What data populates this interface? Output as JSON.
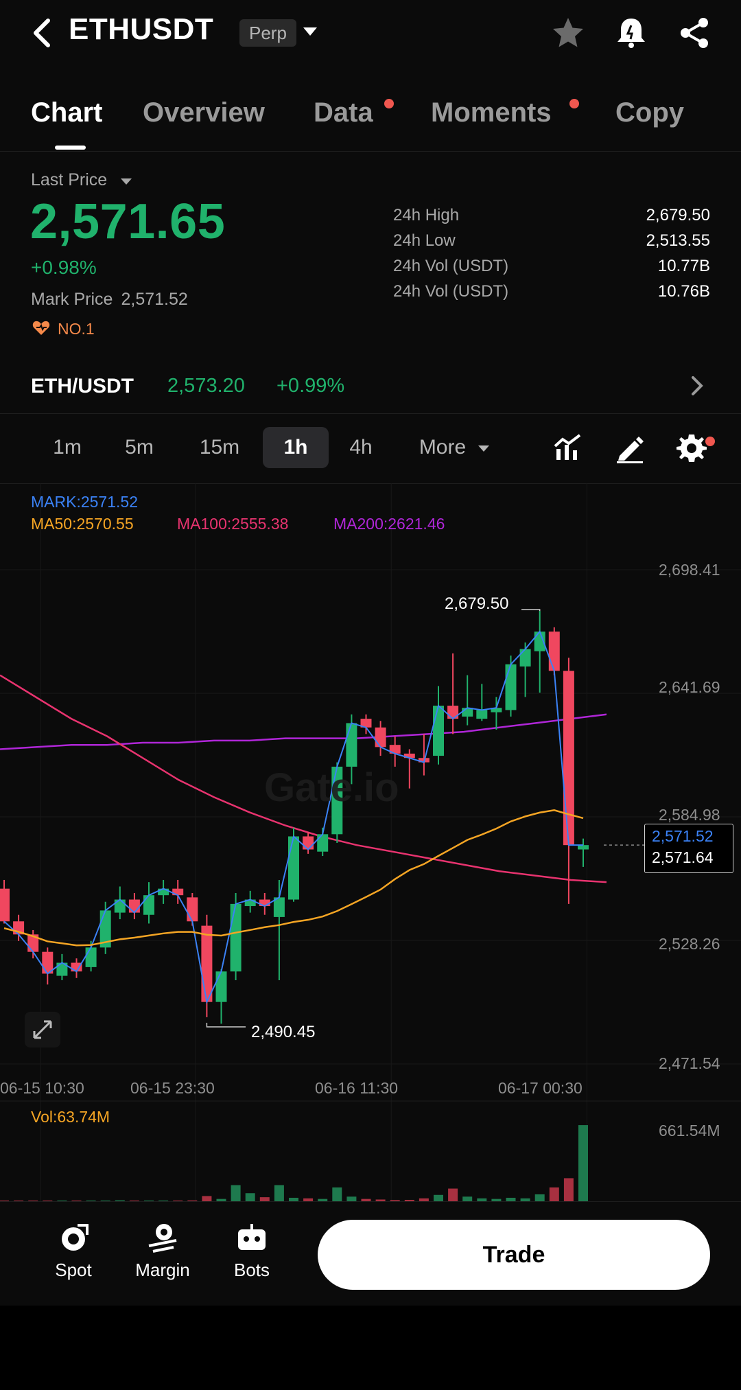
{
  "header": {
    "symbol": "ETHUSDT",
    "badge": "Perp",
    "icons": [
      "chevron-back-icon",
      "caret-down-icon",
      "star-icon",
      "bell-icon",
      "share-icon"
    ]
  },
  "tabs": [
    {
      "label": "Chart",
      "active": true,
      "dot": false
    },
    {
      "label": "Overview",
      "active": false,
      "dot": false
    },
    {
      "label": "Data",
      "active": false,
      "dot": true
    },
    {
      "label": "Moments",
      "active": false,
      "dot": true
    },
    {
      "label": "Copy",
      "active": false,
      "dot": false
    }
  ],
  "ticker": {
    "last_price_label": "Last Price",
    "last_price": "2,571.65",
    "change_pct": "+0.98%",
    "mark_price_label": "Mark Price",
    "mark_price": "2,571.52",
    "rank": "NO.1",
    "stats": [
      {
        "label": "24h High",
        "value": "2,679.50"
      },
      {
        "label": "24h Low",
        "value": "2,513.55"
      },
      {
        "label": "24h Vol (USDT)",
        "value": "10.77B"
      },
      {
        "label": "24h Vol (USDT)",
        "value": "10.76B"
      }
    ]
  },
  "spot_pair": {
    "name": "ETH/USDT",
    "price": "2,573.20",
    "change": "+0.99%"
  },
  "intervals": {
    "items": [
      "1m",
      "5m",
      "15m",
      "1h",
      "4h"
    ],
    "active": "1h",
    "more_label": "More"
  },
  "chart": {
    "legend": {
      "mark": "MARK:2571.52",
      "ma50": "MA50:2570.55",
      "ma100": "MA100:2555.38",
      "ma200": "MA200:2621.46"
    },
    "price_axis": [
      "2,698.41",
      "2,641.69",
      "2,584.98",
      "2,528.26",
      "2,471.54"
    ],
    "time_axis": [
      "06-15 10:30",
      "06-15 23:30",
      "06-16 11:30",
      "06-17 00:30"
    ],
    "high_marker": "2,679.50",
    "low_marker": "2,490.45",
    "mark_tag": "2,571.52",
    "last_tag": "2,571.64",
    "watermark": "Gate.io",
    "volume_label": "Vol:63.74M",
    "volume_axis": "661.54M",
    "colors": {
      "up": "#20b26c",
      "down": "#f0475f",
      "mark": "#3b82f6",
      "ma50": "#f5a524",
      "ma100": "#e8336f",
      "ma200": "#b026d8"
    }
  },
  "chart_data": {
    "type": "candlestick",
    "title": "",
    "interval": "1h",
    "ylim": [
      2471.54,
      2698.41
    ],
    "candles": [
      {
        "o": 2552,
        "h": 2556,
        "l": 2536,
        "c": 2537
      },
      {
        "o": 2537,
        "h": 2540,
        "l": 2528,
        "c": 2531
      },
      {
        "o": 2531,
        "h": 2533,
        "l": 2520,
        "c": 2523
      },
      {
        "o": 2523,
        "h": 2525,
        "l": 2508,
        "c": 2513
      },
      {
        "o": 2512,
        "h": 2522,
        "l": 2510,
        "c": 2518
      },
      {
        "o": 2518,
        "h": 2520,
        "l": 2511,
        "c": 2514
      },
      {
        "o": 2516,
        "h": 2528,
        "l": 2514,
        "c": 2525
      },
      {
        "o": 2525,
        "h": 2546,
        "l": 2522,
        "c": 2542
      },
      {
        "o": 2541,
        "h": 2553,
        "l": 2538,
        "c": 2547
      },
      {
        "o": 2547,
        "h": 2550,
        "l": 2538,
        "c": 2541
      },
      {
        "o": 2540,
        "h": 2555,
        "l": 2536,
        "c": 2549
      },
      {
        "o": 2549,
        "h": 2556,
        "l": 2545,
        "c": 2552
      },
      {
        "o": 2552,
        "h": 2556,
        "l": 2545,
        "c": 2549
      },
      {
        "o": 2548,
        "h": 2550,
        "l": 2535,
        "c": 2537
      },
      {
        "o": 2535,
        "h": 2540,
        "l": 2493,
        "c": 2500
      },
      {
        "o": 2500,
        "h": 2515,
        "l": 2490,
        "c": 2514
      },
      {
        "o": 2514,
        "h": 2550,
        "l": 2510,
        "c": 2545
      },
      {
        "o": 2544,
        "h": 2551,
        "l": 2541,
        "c": 2547
      },
      {
        "o": 2547,
        "h": 2550,
        "l": 2540,
        "c": 2544
      },
      {
        "o": 2539,
        "h": 2556,
        "l": 2510,
        "c": 2548
      },
      {
        "o": 2547,
        "h": 2580,
        "l": 2546,
        "c": 2576
      },
      {
        "o": 2576,
        "h": 2578,
        "l": 2568,
        "c": 2570
      },
      {
        "o": 2569,
        "h": 2580,
        "l": 2567,
        "c": 2577
      },
      {
        "o": 2577,
        "h": 2610,
        "l": 2573,
        "c": 2608
      },
      {
        "o": 2608,
        "h": 2632,
        "l": 2600,
        "c": 2628
      },
      {
        "o": 2630,
        "h": 2632,
        "l": 2623,
        "c": 2626
      },
      {
        "o": 2626,
        "h": 2629,
        "l": 2613,
        "c": 2617
      },
      {
        "o": 2618,
        "h": 2622,
        "l": 2608,
        "c": 2614
      },
      {
        "o": 2614,
        "h": 2616,
        "l": 2598,
        "c": 2612
      },
      {
        "o": 2612,
        "h": 2623,
        "l": 2604,
        "c": 2610
      },
      {
        "o": 2613,
        "h": 2645,
        "l": 2609,
        "c": 2636
      },
      {
        "o": 2636,
        "h": 2660,
        "l": 2623,
        "c": 2630
      },
      {
        "o": 2631,
        "h": 2650,
        "l": 2627,
        "c": 2635
      },
      {
        "o": 2630,
        "h": 2646,
        "l": 2629,
        "c": 2634
      },
      {
        "o": 2633,
        "h": 2640,
        "l": 2625,
        "c": 2635
      },
      {
        "o": 2634,
        "h": 2659,
        "l": 2631,
        "c": 2655
      },
      {
        "o": 2654,
        "h": 2665,
        "l": 2640,
        "c": 2662
      },
      {
        "o": 2661,
        "h": 2679.5,
        "l": 2642,
        "c": 2670
      },
      {
        "o": 2670,
        "h": 2672,
        "l": 2650,
        "c": 2652
      },
      {
        "o": 2652,
        "h": 2658,
        "l": 2545,
        "c": 2572
      },
      {
        "o": 2570,
        "h": 2575,
        "l": 2562,
        "c": 2572
      }
    ],
    "volume": [
      2,
      1,
      1,
      2,
      1,
      1,
      2,
      6,
      8,
      5,
      4,
      3,
      3,
      7,
      45,
      20,
      140,
      70,
      35,
      140,
      30,
      25,
      20,
      120,
      40,
      20,
      15,
      10,
      12,
      25,
      55,
      110,
      40,
      25,
      20,
      30,
      25,
      60,
      120,
      200,
      661
    ]
  }
}
